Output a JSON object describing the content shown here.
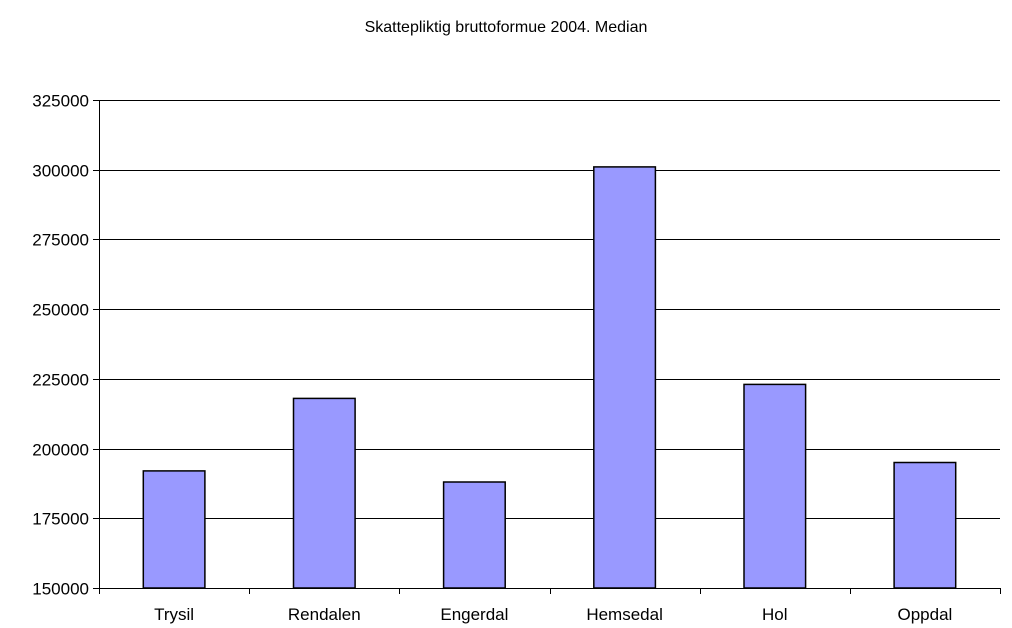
{
  "chart_data": {
    "type": "bar",
    "title": "Skattepliktig bruttoformue 2004. Median",
    "categories": [
      "Trysil",
      "Rendalen",
      "Engerdal",
      "Hemsedal",
      "Hol",
      "Oppdal"
    ],
    "values": [
      192000,
      218000,
      188000,
      301000,
      223000,
      195000
    ],
    "ylim": [
      150000,
      325000
    ],
    "yticks": [
      "150000",
      "175000",
      "200000",
      "225000",
      "250000",
      "275000",
      "300000",
      "325000"
    ],
    "xlabel": "",
    "ylabel": "",
    "grid": true,
    "legend": "none",
    "colors": {
      "bar_fill": "#9999ff",
      "bar_stroke": "#000000",
      "grid": "#000000"
    }
  }
}
